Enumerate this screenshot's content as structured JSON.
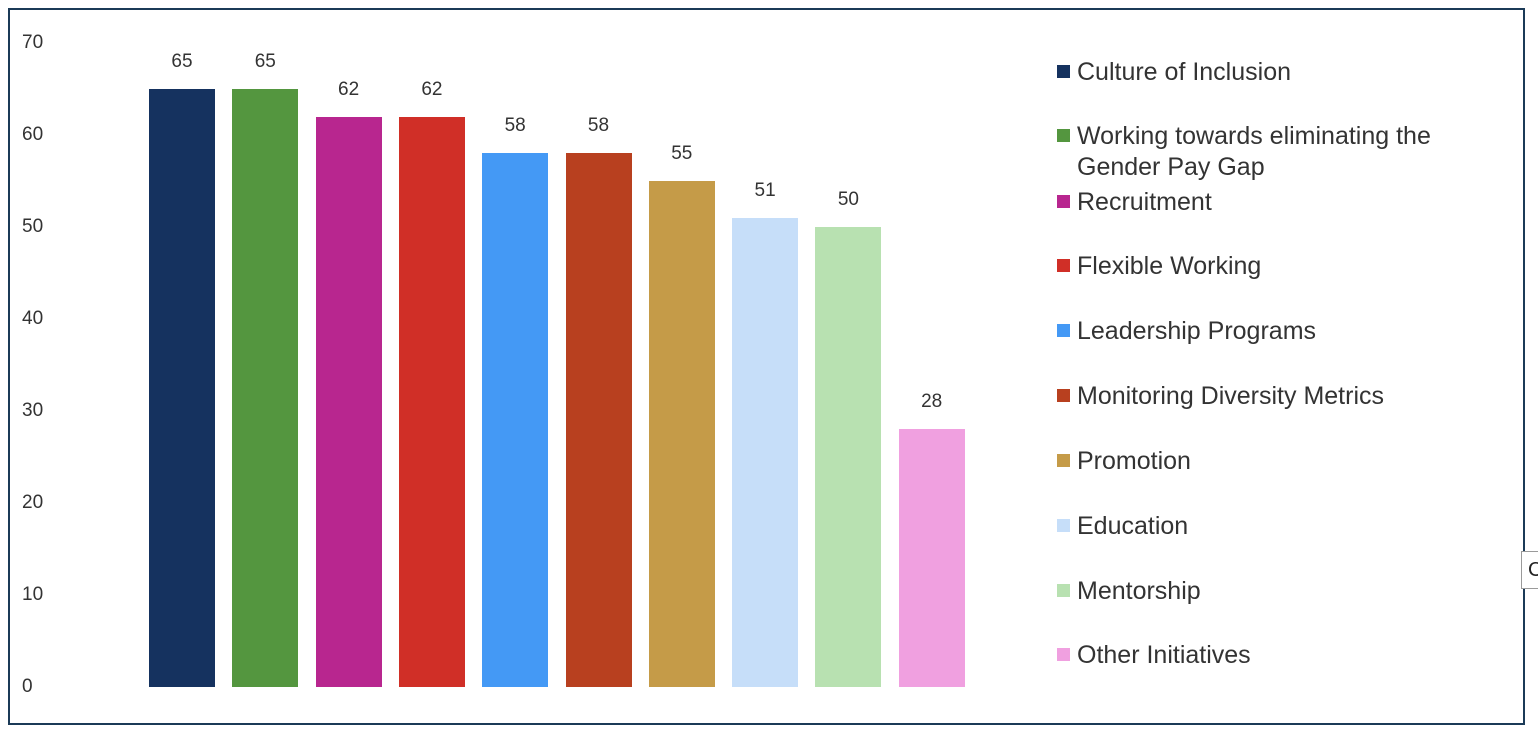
{
  "chart_data": {
    "type": "bar",
    "categories": [
      "Culture of Inclusion",
      "Working towards eliminating the Gender Pay Gap",
      "Recruitment",
      "Flexible Working",
      "Leadership Programs",
      "Monitoring Diversity Metrics",
      "Promotion",
      "Education",
      "Mentorship",
      "Other Initiatives"
    ],
    "values": [
      65,
      65,
      62,
      62,
      58,
      58,
      55,
      51,
      50,
      28
    ],
    "colors": [
      "#15325f",
      "#54963f",
      "#b8268f",
      "#d02f27",
      "#4499f5",
      "#b8401f",
      "#c59b48",
      "#c6def9",
      "#b8e1b1",
      "#f0a0e0"
    ],
    "ylim": [
      0,
      70
    ],
    "yticks": [
      "0",
      "10",
      "20",
      "30",
      "40",
      "50",
      "60",
      "70"
    ],
    "data_labels": [
      "65",
      "65",
      "62",
      "62",
      "58",
      "58",
      "55",
      "51",
      "50",
      "28"
    ],
    "grid": false,
    "legend_position": "right",
    "title": "",
    "xlabel": "",
    "ylabel": ""
  },
  "legend": [
    {
      "label": "Culture of Inclusion"
    },
    {
      "label": "Working towards eliminating the Gender Pay Gap"
    },
    {
      "label": "Recruitment"
    },
    {
      "label": "Flexible Working"
    },
    {
      "label": "Leadership Programs"
    },
    {
      "label": "Monitoring Diversity Metrics"
    },
    {
      "label": "Promotion"
    },
    {
      "label": "Education"
    },
    {
      "label": "Mentorship"
    },
    {
      "label": "Other Initiatives"
    }
  ],
  "edge_tab_text": "C"
}
